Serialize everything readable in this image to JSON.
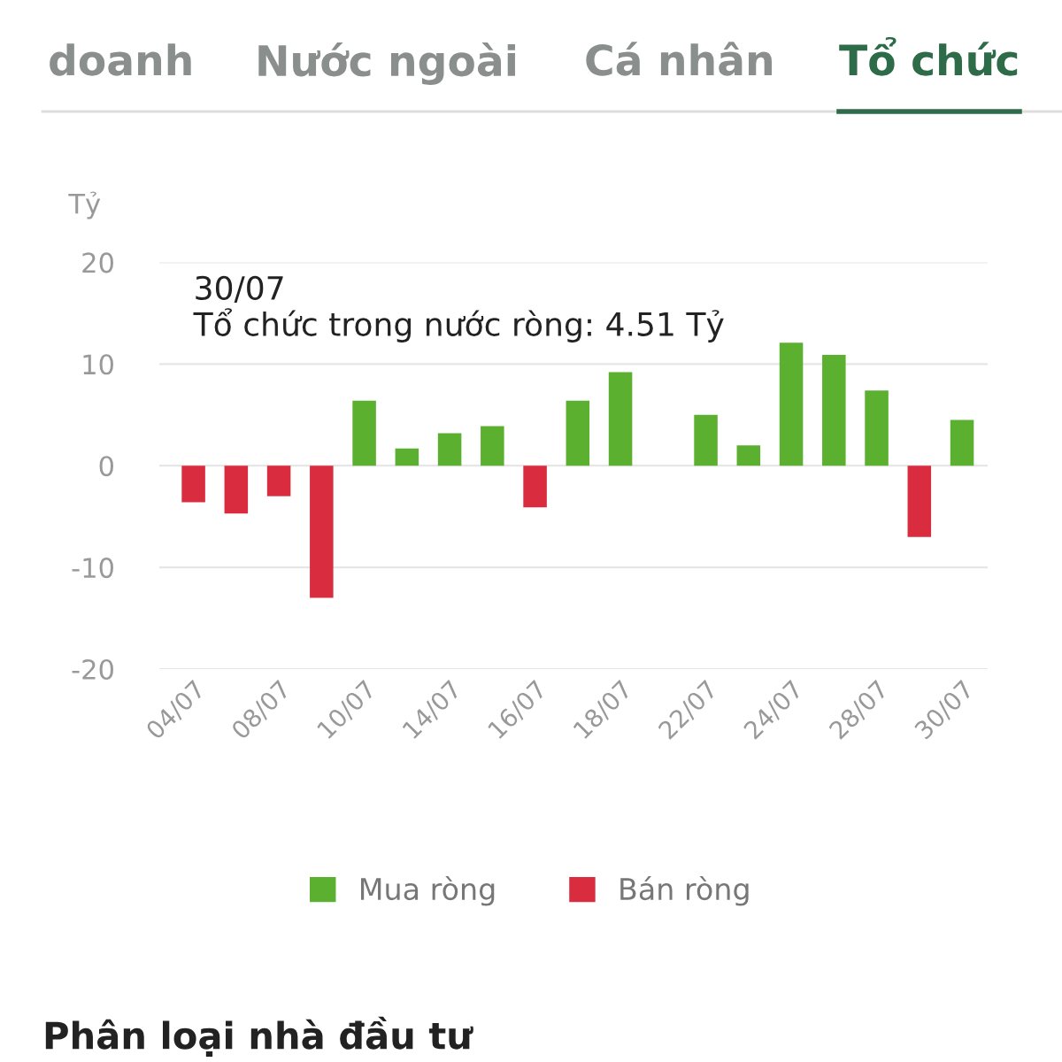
{
  "chart_data": {
    "type": "bar",
    "stacked": true,
    "ylabel": "Tỷ",
    "annotations": [
      "doanh",
      "Nước ngoài",
      "Cá nhân",
      "Tổ chức",
      "30/07",
      "Tổ chức trong nước ròng: 4.51 Tỷ",
      "Phân loại nhà đầu tư"
    ],
    "categories": [
      "04/07",
      null,
      "08/07",
      null,
      "10/07",
      null,
      "14/07",
      null,
      "16/07",
      null,
      "18/07",
      null,
      "22/07",
      null,
      "24/07",
      null,
      "28/07",
      null,
      "30/07"
    ],
    "series": [
      {
        "name": "Mua ròng",
        "color": "#5cb030",
        "values": [
          null,
          null,
          null,
          null,
          6.4,
          1.7,
          3.2,
          3.9,
          null,
          6.4,
          9.2,
          null,
          5.0,
          2.0,
          12.1,
          10.9,
          7.4,
          null,
          4.51
        ]
      },
      {
        "name": "Bán ròng",
        "color": "#d92d3f",
        "values": [
          -3.6,
          -4.7,
          -3.0,
          -13.0,
          null,
          null,
          null,
          null,
          -4.1,
          null,
          null,
          null,
          null,
          null,
          null,
          null,
          null,
          -7.0,
          null
        ]
      }
    ],
    "ylim": [
      -20,
      20
    ],
    "yticks": [
      -20,
      -10,
      0,
      10,
      20
    ],
    "grid": "y",
    "legend": "bottom"
  }
}
